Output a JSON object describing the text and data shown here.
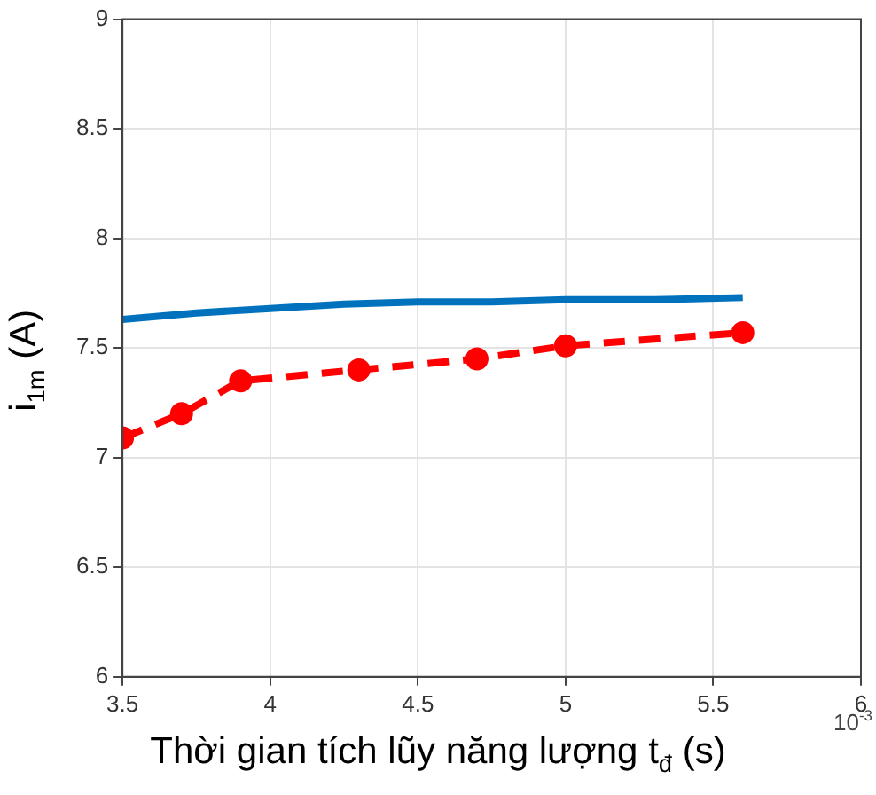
{
  "chart_data": {
    "type": "line",
    "xlabel": "Thời gian tích lũy năng lượng t$_{đ}$ (s)",
    "ylabel": "i$_{1m}$ (A)",
    "annotations": [
      "10$^{-3}$"
    ],
    "xlim": [
      3.5,
      6
    ],
    "xticks": [
      3.5,
      4,
      4.5,
      5,
      5.5,
      6
    ],
    "ylim": [
      6,
      9
    ],
    "yticks": [
      6,
      6.5,
      7,
      7.5,
      8,
      8.5,
      9
    ],
    "grid": true,
    "series": [
      {
        "color": "#0072bd",
        "marker": "none",
        "line_style": "solid",
        "x": [
          3.5,
          3.75,
          4,
          4.25,
          4.5,
          4.75,
          5,
          5.3,
          5.6
        ],
        "values": [
          7.63,
          7.66,
          7.68,
          7.7,
          7.71,
          7.71,
          7.72,
          7.72,
          7.73
        ]
      },
      {
        "color": "#ff0000",
        "marker": "circle",
        "line_style": "dashed",
        "x": [
          3.5,
          3.7,
          3.9,
          4.3,
          4.7,
          5.0,
          5.6
        ],
        "values": [
          7.09,
          7.2,
          7.35,
          7.4,
          7.45,
          7.51,
          7.57
        ]
      }
    ]
  }
}
